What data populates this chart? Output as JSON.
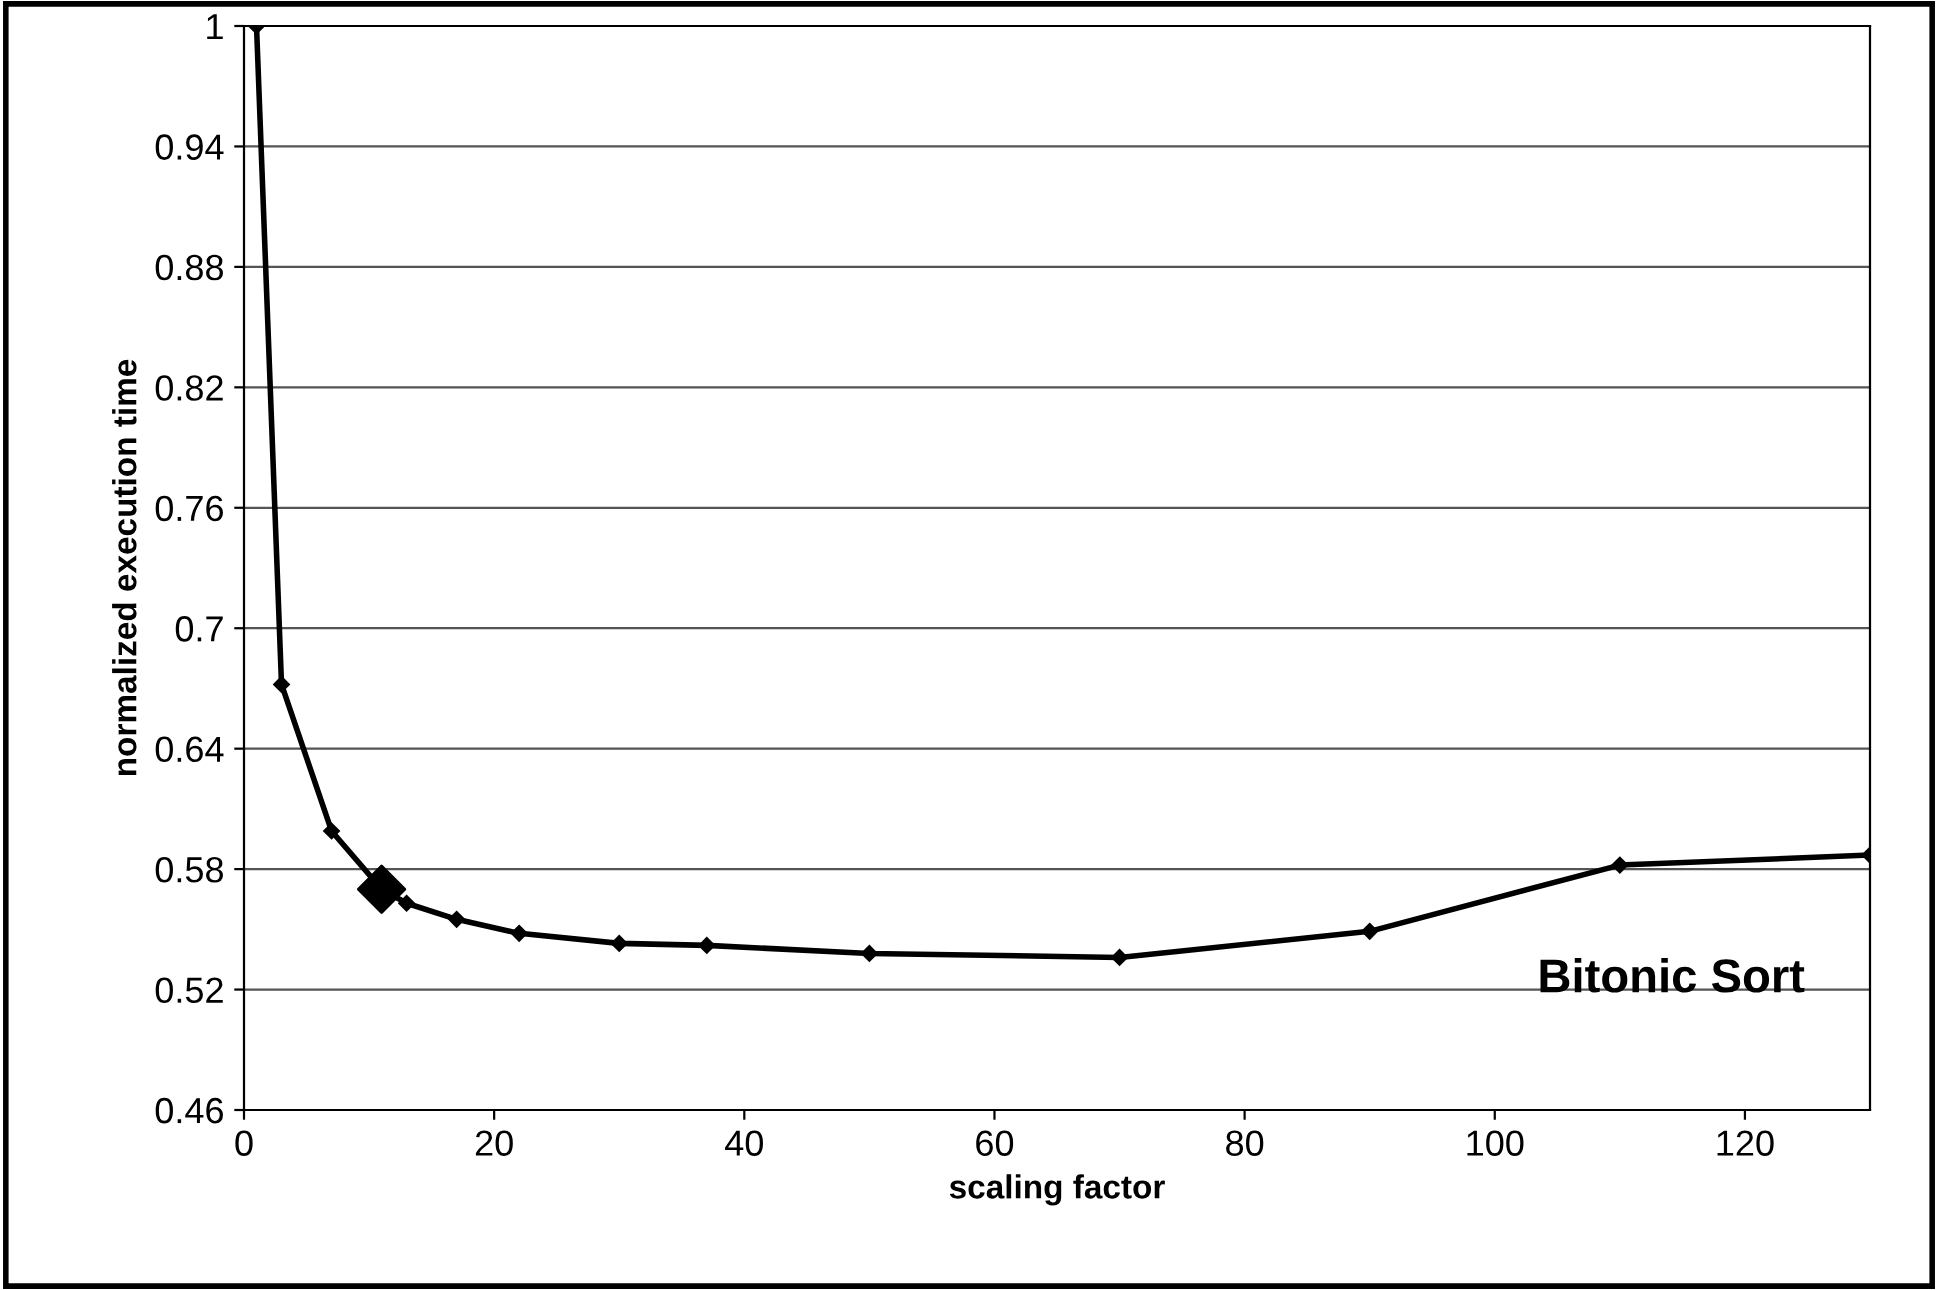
{
  "chart_data": {
    "type": "line",
    "xlabel": "scaling factor",
    "ylabel": "normalized execution time",
    "annotations": [
      "Bitonic Sort"
    ],
    "series": [
      {
        "color": "#000000",
        "marker": "diamond",
        "x": [
          1,
          3,
          7,
          11,
          13,
          17,
          22,
          30,
          37,
          50,
          70,
          90,
          110,
          130
        ],
        "values": [
          1,
          0.672,
          0.599,
          0.57,
          0.563,
          0.555,
          0.548,
          0.543,
          0.542,
          0.538,
          0.536,
          0.549,
          0.582,
          0.587
        ]
      },
      {
        "type": "scatter",
        "color": "#000000",
        "marker": "diamond",
        "x": [
          11
        ],
        "values": [
          0.57
        ]
      }
    ],
    "xlim": [
      0,
      130
    ],
    "xticks": [
      0,
      20,
      40,
      60,
      80,
      100,
      120
    ],
    "ylim": [
      0.46,
      1
    ],
    "yticks": [
      0.46,
      0.52,
      0.58,
      0.64,
      0.7,
      0.76,
      0.82,
      0.88,
      0.94,
      1
    ],
    "grid": "y",
    "line_style": "solid",
    "legend": false
  }
}
